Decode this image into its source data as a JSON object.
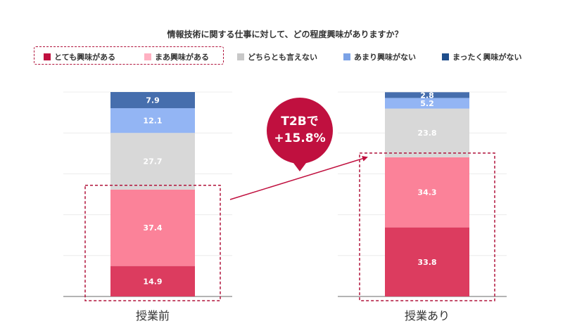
{
  "chart_data": {
    "type": "bar",
    "stacked": true,
    "title": "情報技術に関する仕事に対して、どの程度興味がありますか？",
    "categories": [
      "授業前",
      "授業あり"
    ],
    "ylim": [
      0,
      100
    ],
    "grid": true,
    "legend_position": "top",
    "series": [
      {
        "name": "とても興味がある",
        "values": [
          14.9,
          33.8
        ],
        "color": "#dc3c5f",
        "legend_color": "#c0103f"
      },
      {
        "name": "まあ興味がある",
        "values": [
          37.4,
          34.3
        ],
        "color": "#fb8299",
        "legend_color": "#ffb1c2"
      },
      {
        "name": "どちらとも言えない",
        "values": [
          27.7,
          23.8
        ],
        "color": "#d8d8d8",
        "legend_color": "#c8c8c8"
      },
      {
        "name": "あまり興味がない",
        "values": [
          12.1,
          5.2
        ],
        "color": "#93b5f4",
        "legend_color": "#7ba2e6"
      },
      {
        "name": "まったく興味がない",
        "values": [
          7.9,
          2.8
        ],
        "color": "#466ead",
        "legend_color": "#1f4e8c"
      }
    ],
    "annotation": {
      "line1": "T2Bで",
      "line2": "+15.8%",
      "color": "#c0103f"
    }
  }
}
